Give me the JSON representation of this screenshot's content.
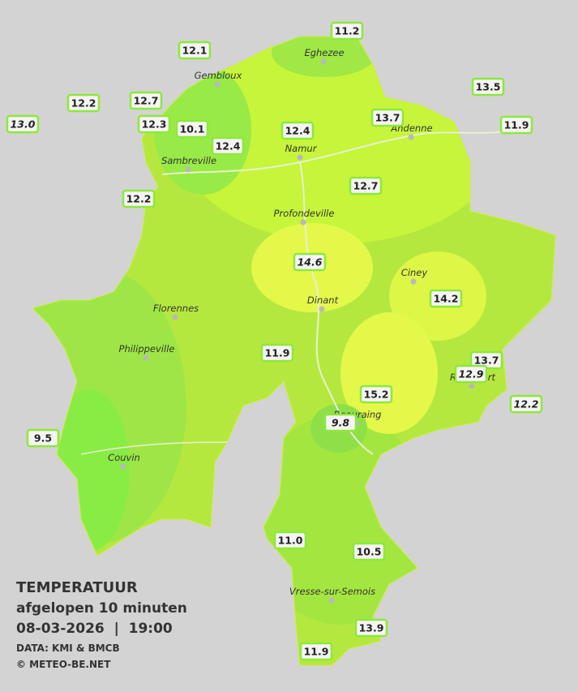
{
  "legend": {
    "title": "TEMPERATUUR",
    "subtitle": "afgelopen 10 minuten",
    "timestamp": "08-03-2026  |  19:00",
    "source": "DATA: KMI & BMCB",
    "credit": "© METEO-BE.NET"
  },
  "cities": [
    "Eghezee",
    "Gembloux",
    "Andenne",
    "Namur",
    "Sambreville",
    "Profondeville",
    "Ciney",
    "Dinant",
    "Florennes",
    "Philippeville",
    "Rochefort",
    "Beauraing",
    "Couvin",
    "Vresse-sur-Semois"
  ],
  "stations": [
    {
      "value": "12.1"
    },
    {
      "value": "11.2"
    },
    {
      "value": "12.2"
    },
    {
      "value": "12.7"
    },
    {
      "value": "13.0",
      "italic": true
    },
    {
      "value": "12.3"
    },
    {
      "value": "10.1"
    },
    {
      "value": "12.4"
    },
    {
      "value": "12.4"
    },
    {
      "value": "13.7"
    },
    {
      "value": "13.5"
    },
    {
      "value": "11.9"
    },
    {
      "value": "12.7"
    },
    {
      "value": "12.2"
    },
    {
      "value": "14.6",
      "italic": true
    },
    {
      "value": "14.2"
    },
    {
      "value": "11.9"
    },
    {
      "value": "13.7"
    },
    {
      "value": "12.9",
      "italic": true
    },
    {
      "value": "12.2",
      "italic": true
    },
    {
      "value": "15.2"
    },
    {
      "value": "9.8",
      "italic": true
    },
    {
      "value": "9.5"
    },
    {
      "value": "11.0"
    },
    {
      "value": "10.5"
    },
    {
      "value": "13.9"
    },
    {
      "value": "11.9"
    }
  ]
}
